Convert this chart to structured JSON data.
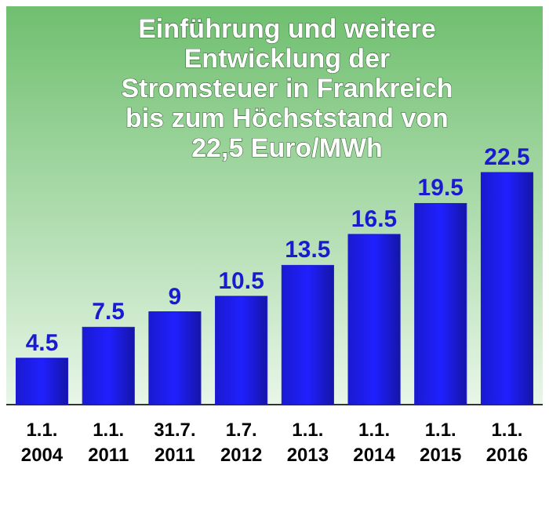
{
  "chart_data": {
    "type": "bar",
    "title": "Einführung und weitere\nEntwicklung der\nStromsteuer in Frankreich\nbis zum Höchststand von\n22,5 Euro/MWh",
    "categories": [
      "1.1.\n2004",
      "1.1.\n2011",
      "31.7.\n2011",
      "1.7.\n2012",
      "1.1.\n2013",
      "1.1.\n2014",
      "1.1.\n2015",
      "1.1.\n2016"
    ],
    "values": [
      4.5,
      7.5,
      9,
      10.5,
      13.5,
      16.5,
      19.5,
      22.5
    ],
    "color": "#1a1ad0",
    "data_labels": true
  }
}
